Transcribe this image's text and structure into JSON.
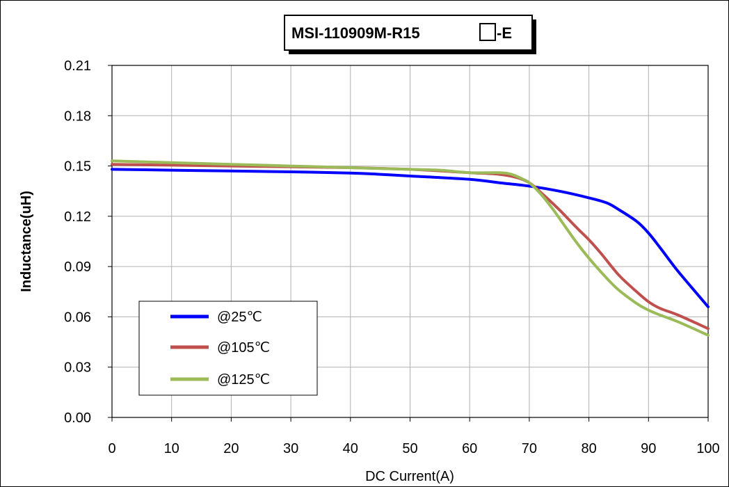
{
  "chart_data": {
    "type": "line",
    "title_prefix": "MSI-110909M-R15",
    "title_suffix": "-E",
    "xlabel": "DC Current(A)",
    "ylabel": "Inductance(uH)",
    "xlim": [
      0,
      100
    ],
    "ylim": [
      0,
      0.21
    ],
    "xticks": [
      "0",
      "10",
      "20",
      "30",
      "40",
      "50",
      "60",
      "70",
      "80",
      "90",
      "100"
    ],
    "yticks": [
      "0.00",
      "0.03",
      "0.06",
      "0.09",
      "0.12",
      "0.15",
      "0.18",
      "0.21"
    ],
    "grid": true,
    "legend_position": "lower-left",
    "series": [
      {
        "name": "@25℃",
        "color": "#0000FF",
        "x": [
          0,
          10,
          20,
          30,
          40,
          45,
          50,
          60,
          65,
          70,
          75,
          80,
          83,
          85,
          88,
          90,
          92,
          95,
          100
        ],
        "y": [
          0.148,
          0.1475,
          0.147,
          0.1465,
          0.1458,
          0.145,
          0.144,
          0.142,
          0.14,
          0.138,
          0.135,
          0.131,
          0.128,
          0.124,
          0.117,
          0.11,
          0.101,
          0.087,
          0.066
        ]
      },
      {
        "name": "@105℃",
        "color": "#C0504D",
        "x": [
          0,
          10,
          20,
          30,
          40,
          50,
          60,
          65,
          68,
          70,
          72,
          75,
          78,
          80,
          82,
          85,
          88,
          90,
          92,
          95,
          100
        ],
        "y": [
          0.151,
          0.1505,
          0.15,
          0.1495,
          0.149,
          0.148,
          0.146,
          0.145,
          0.143,
          0.14,
          0.134,
          0.124,
          0.113,
          0.106,
          0.098,
          0.085,
          0.075,
          0.069,
          0.065,
          0.061,
          0.053
        ]
      },
      {
        "name": "@125℃",
        "color": "#9BBB59",
        "x": [
          0,
          10,
          20,
          30,
          40,
          50,
          55,
          60,
          65,
          67,
          69,
          70,
          72,
          74,
          76,
          78,
          80,
          83,
          85,
          88,
          90,
          92,
          95,
          100
        ],
        "y": [
          0.153,
          0.152,
          0.151,
          0.15,
          0.149,
          0.148,
          0.1475,
          0.146,
          0.146,
          0.145,
          0.142,
          0.14,
          0.133,
          0.124,
          0.114,
          0.104,
          0.095,
          0.083,
          0.076,
          0.068,
          0.064,
          0.061,
          0.057,
          0.049
        ]
      }
    ]
  }
}
